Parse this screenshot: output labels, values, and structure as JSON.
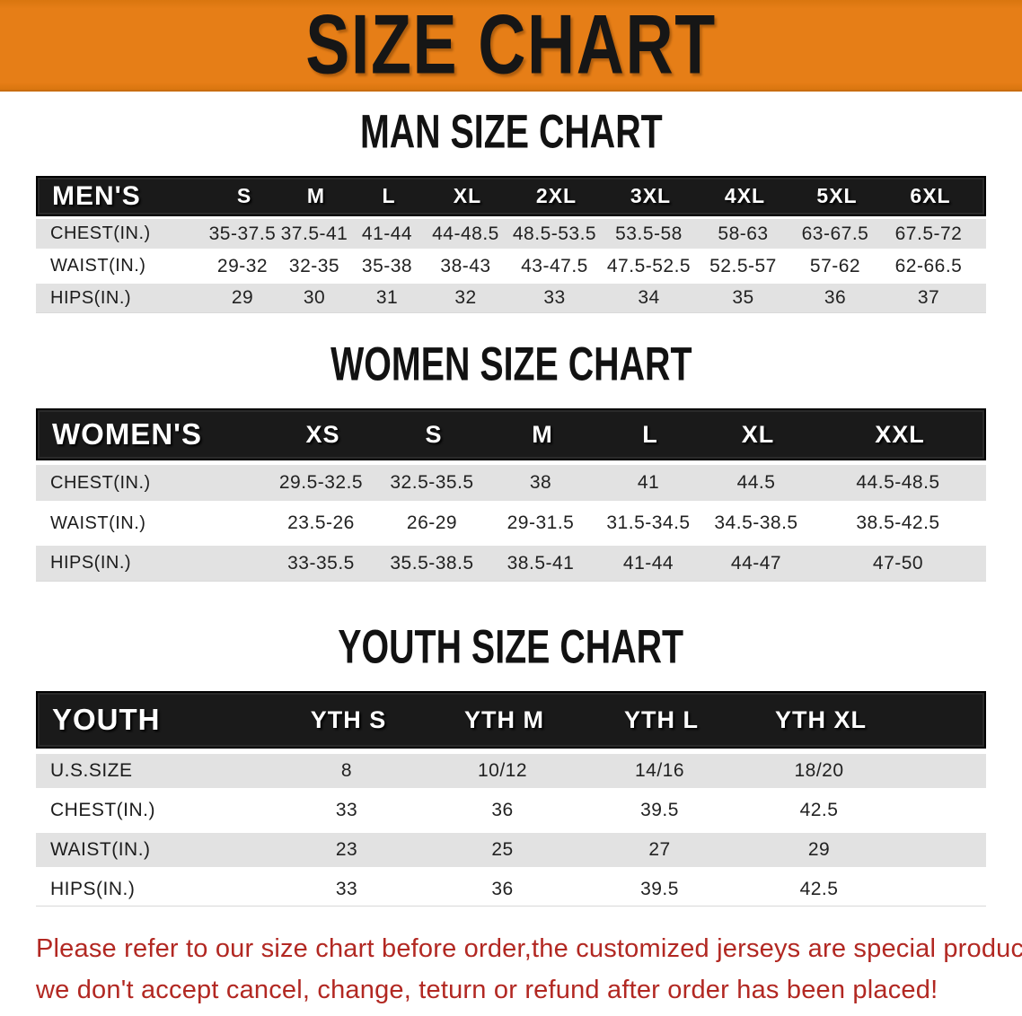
{
  "banner": {
    "title": "SIZE CHART"
  },
  "colors": {
    "banner_bg": "#E67E17",
    "header_band_bg": "#1A1A1A",
    "row_alt_bg": "#E2E2E2",
    "footer_text": "#B22822",
    "heading_text": "#121212"
  },
  "sections": {
    "men": {
      "heading": "MAN SIZE CHART",
      "corner_label": "MEN'S",
      "sizes": [
        "S",
        "M",
        "L",
        "XL",
        "2XL",
        "3XL",
        "4XL",
        "5XL",
        "6XL"
      ],
      "rows": [
        {
          "label": "CHEST(IN.)",
          "values": [
            "35-37.5",
            "37.5-41",
            "41-44",
            "44-48.5",
            "48.5-53.5",
            "53.5-58",
            "58-63",
            "63-67.5",
            "67.5-72"
          ]
        },
        {
          "label": "WAIST(IN.)",
          "values": [
            "29-32",
            "32-35",
            "35-38",
            "38-43",
            "43-47.5",
            "47.5-52.5",
            "52.5-57",
            "57-62",
            "62-66.5"
          ]
        },
        {
          "label": "HIPS(IN.)",
          "values": [
            "29",
            "30",
            "31",
            "32",
            "33",
            "34",
            "35",
            "36",
            "37"
          ]
        }
      ]
    },
    "women": {
      "heading": "WOMEN SIZE CHART",
      "corner_label": "WOMEN'S",
      "sizes": [
        "XS",
        "S",
        "M",
        "L",
        "XL",
        "XXL"
      ],
      "rows": [
        {
          "label": "CHEST(IN.)",
          "values": [
            "29.5-32.5",
            "32.5-35.5",
            "38",
            "41",
            "44.5",
            "44.5-48.5"
          ]
        },
        {
          "label": "WAIST(IN.)",
          "values": [
            "23.5-26",
            "26-29",
            "29-31.5",
            "31.5-34.5",
            "34.5-38.5",
            "38.5-42.5"
          ]
        },
        {
          "label": "HIPS(IN.)",
          "values": [
            "33-35.5",
            "35.5-38.5",
            "38.5-41",
            "41-44",
            "44-47",
            "47-50"
          ]
        }
      ]
    },
    "youth": {
      "heading": "YOUTH SIZE CHART",
      "corner_label": "YOUTH",
      "sizes": [
        "YTH S",
        "YTH M",
        "YTH L",
        "YTH XL"
      ],
      "rows": [
        {
          "label": "U.S.SIZE",
          "values": [
            "8",
            "10/12",
            "14/16",
            "18/20"
          ]
        },
        {
          "label": "CHEST(IN.)",
          "values": [
            "33",
            "36",
            "39.5",
            "42.5"
          ]
        },
        {
          "label": "WAIST(IN.)",
          "values": [
            "23",
            "25",
            "27",
            "29"
          ]
        },
        {
          "label": "HIPS(IN.)",
          "values": [
            "33",
            "36",
            "39.5",
            "42.5"
          ]
        }
      ]
    }
  },
  "footer": {
    "line1": "Please refer to our size chart before order,the customized jerseys are special products,",
    "line2": "we don't accept cancel, change, teturn or refund after order has been placed!"
  }
}
